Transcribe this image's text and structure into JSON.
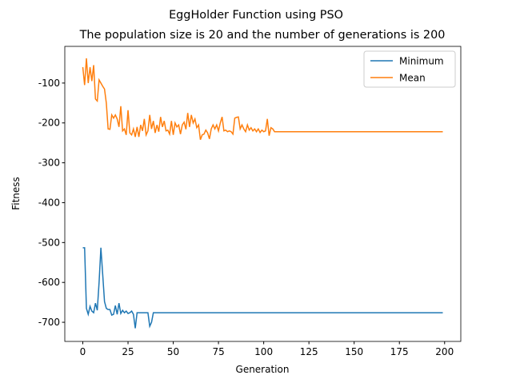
{
  "chart_data": {
    "type": "line",
    "title": "EggHolder Function using PSO",
    "subtitle": "The population size is 20 and the number of generations is 200",
    "x_label": "Generation",
    "y_label": "Fitness",
    "x": [
      0,
      1,
      2,
      3,
      4,
      5,
      6,
      7,
      8,
      9,
      10,
      11,
      12,
      13,
      14,
      15,
      16,
      17,
      18,
      19,
      20,
      21,
      22,
      23,
      24,
      25,
      26,
      27,
      28,
      29,
      30,
      31,
      32,
      33,
      34,
      35,
      36,
      37,
      38,
      39,
      40,
      41,
      42,
      43,
      44,
      45,
      46,
      47,
      48,
      49,
      50,
      51,
      52,
      53,
      54,
      55,
      56,
      57,
      58,
      59,
      60,
      61,
      62,
      63,
      64,
      65,
      66,
      67,
      68,
      69,
      70,
      71,
      72,
      73,
      74,
      75,
      76,
      77,
      78,
      79,
      80,
      81,
      82,
      83,
      84,
      85,
      86,
      87,
      88,
      89,
      90,
      91,
      92,
      93,
      94,
      95,
      96,
      97,
      98,
      99,
      100,
      101,
      102,
      103,
      104,
      105,
      106,
      107,
      199
    ],
    "series": [
      {
        "name": "Minimum",
        "color": "#1f77b4",
        "values": [
          -513,
          -513,
          -665,
          -680,
          -660,
          -672,
          -676,
          -652,
          -670,
          -600,
          -513,
          -580,
          -648,
          -665,
          -668,
          -668,
          -682,
          -680,
          -658,
          -680,
          -652,
          -678,
          -670,
          -676,
          -672,
          -678,
          -676,
          -672,
          -680,
          -715,
          -676,
          -676,
          -676,
          -676,
          -676,
          -676,
          -676,
          -710,
          -700,
          -676,
          -676,
          -676,
          -676,
          -676,
          -676,
          -676,
          -676,
          -676,
          -676,
          -676,
          -676,
          -676,
          -676,
          -676,
          -676,
          -676,
          -676,
          -676,
          -676,
          -676,
          -676,
          -676,
          -676,
          -676,
          -676,
          -676,
          -676,
          -676,
          -676,
          -676,
          -676,
          -676,
          -676,
          -676,
          -676,
          -676,
          -676,
          -676,
          -676,
          -676,
          -676,
          -676,
          -676,
          -676,
          -676,
          -676,
          -676,
          -676,
          -676,
          -676,
          -676,
          -676,
          -676,
          -676,
          -676,
          -676,
          -676,
          -676,
          -676,
          -676,
          -676,
          -676,
          -676,
          -676,
          -676,
          -676,
          -676,
          -676,
          -676
        ]
      },
      {
        "name": "Mean",
        "color": "#ff7f0e",
        "values": [
          -60,
          -105,
          -38,
          -100,
          -60,
          -95,
          -55,
          -140,
          -145,
          -92,
          -100,
          -108,
          -115,
          -150,
          -215,
          -216,
          -180,
          -188,
          -180,
          -190,
          -210,
          -158,
          -220,
          -215,
          -230,
          -168,
          -225,
          -230,
          -215,
          -235,
          -210,
          -235,
          -205,
          -220,
          -190,
          -230,
          -220,
          -180,
          -215,
          -195,
          -225,
          -205,
          -222,
          -185,
          -210,
          -195,
          -220,
          -218,
          -228,
          -195,
          -230,
          -200,
          -210,
          -205,
          -228,
          -205,
          -198,
          -216,
          -175,
          -210,
          -180,
          -200,
          -190,
          -212,
          -205,
          -242,
          -230,
          -228,
          -218,
          -225,
          -240,
          -215,
          -205,
          -215,
          -205,
          -220,
          -200,
          -185,
          -220,
          -218,
          -222,
          -220,
          -222,
          -228,
          -188,
          -186,
          -185,
          -215,
          -205,
          -215,
          -222,
          -205,
          -218,
          -212,
          -220,
          -215,
          -222,
          -215,
          -224,
          -218,
          -222,
          -220,
          -190,
          -232,
          -212,
          -215,
          -222,
          -222,
          -222
        ]
      }
    ],
    "xlim": [
      -9.95,
      208.95
    ],
    "ylim": [
      -748,
      -8
    ],
    "xticks": [
      0,
      25,
      50,
      75,
      100,
      125,
      150,
      175,
      200
    ],
    "yticks": [
      -100,
      -200,
      -300,
      -400,
      -500,
      -600,
      -700
    ],
    "legend": "upper right"
  }
}
